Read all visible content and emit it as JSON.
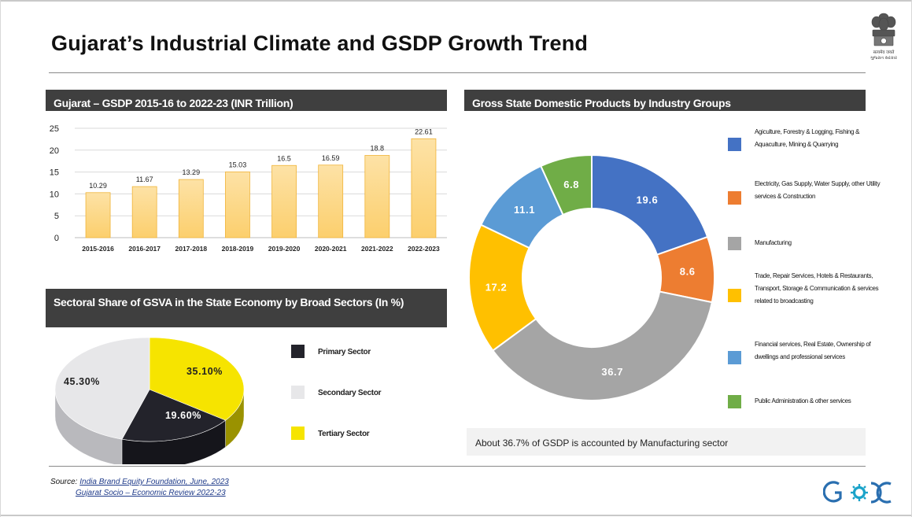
{
  "page": {
    "title": "Gujarat’s Industrial Climate and GSDP Growth Trend",
    "note": "About 36.7% of GSDP is accounted by Manufacturing sector",
    "source_prefix": "Source:",
    "source_line1": "India Brand Equity Foundation, June, 2023",
    "source_line2": "Gujarat Socio – Economic Review 2022-23",
    "emblem_caption": "सत्यमेव जयते\nગુજરાત સરકાર",
    "logo_text": "GIDC"
  },
  "chart_data": [
    {
      "id": "gsdp_bar",
      "type": "bar",
      "title": "Gujarat – GSDP 2015-16 to 2022-23 (INR Trillion)",
      "categories": [
        "2015-2016",
        "2016-2017",
        "2017-2018",
        "2018-2019",
        "2019-2020",
        "2020-2021",
        "2021-2022",
        "2022-2023"
      ],
      "values": [
        10.29,
        11.67,
        13.29,
        15.03,
        16.5,
        16.59,
        18.8,
        22.61
      ],
      "ylim": [
        0,
        25
      ],
      "yticks": [
        0,
        5,
        10,
        15,
        20,
        25
      ],
      "grid": true,
      "colors": {
        "bar_top": "#fde2a6",
        "bar_bottom": "#fccf6d",
        "bar_border": "#f0b43a"
      }
    },
    {
      "id": "gsva_pie",
      "type": "pie",
      "title": "Sectoral Share of GSVA in the State Economy by Broad Sectors (In %)",
      "labels": [
        "Primary Sector",
        "Secondary Sector",
        "Tertiary Sector"
      ],
      "values": [
        19.6,
        45.3,
        35.1
      ],
      "value_labels": [
        "19.60%",
        "45.30%",
        "35.10%"
      ],
      "colors": [
        "#23232b",
        "#e7e7e9",
        "#f6e400"
      ],
      "legend_position": "right"
    },
    {
      "id": "gsdp_donut",
      "type": "pie",
      "title": "Gross State Domestic Products by Industry Groups",
      "labels": [
        "Agiculture, Forestry & Logging, Fishing & Aquaculture, Mining & Quarrying",
        "Electricity, Gas Supply, Water Supply, other Utility services & Construction",
        "Manufacturing",
        "Trade, Repair Services, Hotels & Restaurants, Transport, Storage & Communication & services related to broadcasting",
        "Financial services, Real Estate, Ownership of dwellings and professional services",
        "Public Administration & other services"
      ],
      "values": [
        19.6,
        8.6,
        36.7,
        17.2,
        11.1,
        6.8
      ],
      "colors": [
        "#4472c4",
        "#ed7d31",
        "#a5a5a5",
        "#ffc000",
        "#5b9bd5",
        "#70ad47"
      ],
      "legend_position": "right"
    }
  ]
}
